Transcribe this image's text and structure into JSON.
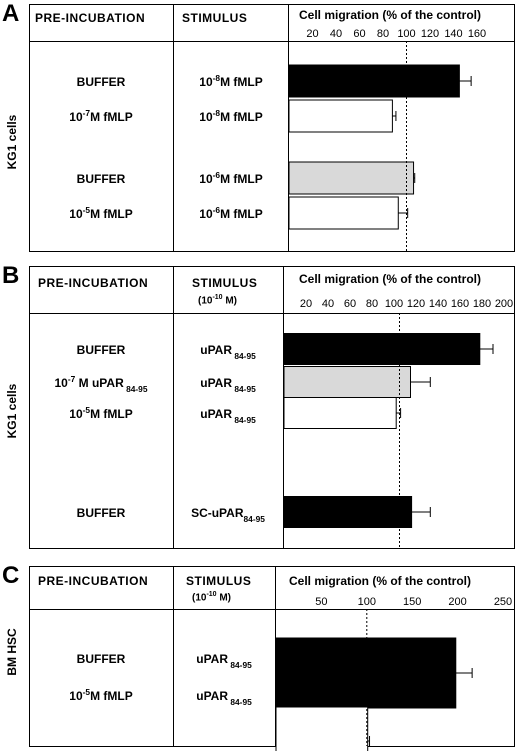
{
  "chart_data": [
    {
      "type": "bar",
      "panel": "A",
      "side_label": "KG1 cells",
      "header": {
        "col1": "PRE-INCUBATION",
        "col2": "STIMULUS",
        "col2_sub": "",
        "col3": "Cell migration (% of the control)"
      },
      "xticks": [
        "20",
        "40",
        "60",
        "80",
        "100",
        "120",
        "140",
        "160"
      ],
      "xlim": [
        0,
        160
      ],
      "reference_line": 100,
      "rows": [
        {
          "pre_main": "BUFFER",
          "pre_sup": "",
          "pre_tail": "",
          "pre_sub": "",
          "stim_main": "10",
          "stim_sup": "-8",
          "stim_tail": "M fMLP",
          "stim_sub": "",
          "value": 145,
          "error": 10,
          "fill": "#000000"
        },
        {
          "pre_main": "10",
          "pre_sup": "-7",
          "pre_tail": "M fMLP",
          "pre_sub": "",
          "stim_main": "10",
          "stim_sup": "-8",
          "stim_tail": "M fMLP",
          "stim_sub": "",
          "value": 88,
          "error": 3,
          "fill": "#ffffff"
        },
        {
          "pre_main": "BUFFER",
          "pre_sup": "",
          "pre_tail": "",
          "pre_sub": "",
          "stim_main": "10",
          "stim_sup": "-6",
          "stim_tail": "M fMLP",
          "stim_sub": "",
          "value": 106,
          "error": 1,
          "fill": "#d9d9d9"
        },
        {
          "pre_main": "10",
          "pre_sup": "-5",
          "pre_tail": "M fMLP",
          "pre_sub": "",
          "stim_main": "10",
          "stim_sup": "-6",
          "stim_tail": "M fMLP",
          "stim_sub": "",
          "value": 93,
          "error": 8,
          "fill": "#ffffff"
        }
      ]
    },
    {
      "type": "bar",
      "panel": "B",
      "side_label": "KG1 cells",
      "header": {
        "col1": "PRE-INCUBATION",
        "col2": "STIMULUS",
        "col2_sub": "(10",
        "col2_sub_sup": "-10",
        "col2_sub_tail": " M)",
        "col3": "Cell migration (% of the control)"
      },
      "xticks": [
        "20",
        "40",
        "60",
        "80",
        "100",
        "120",
        "140",
        "160",
        "180",
        "200"
      ],
      "xlim": [
        0,
        200
      ],
      "reference_line": 105,
      "rows": [
        {
          "pre_main": "BUFFER",
          "pre_sup": "",
          "pre_tail": "",
          "pre_sub": "",
          "stim_main": "uPAR",
          "stim_sup": "",
          "stim_tail": "",
          "stim_sub": " 84-95",
          "value": 178,
          "error": 12,
          "fill": "#000000"
        },
        {
          "pre_main": "10",
          "pre_sup": "-7",
          "pre_tail": " M uPAR",
          "pre_sub": " 84-95",
          "stim_main": "uPAR",
          "stim_sup": "",
          "stim_tail": "",
          "stim_sub": " 84-95",
          "value": 115,
          "error": 18,
          "fill": "#d9d9d9"
        },
        {
          "pre_main": "10",
          "pre_sup": "-5",
          "pre_tail": "M fMLP",
          "pre_sub": "",
          "stim_main": "uPAR",
          "stim_sup": "",
          "stim_tail": "",
          "stim_sub": " 84-95",
          "value": 102,
          "error": 4,
          "fill": "#ffffff"
        },
        {
          "pre_main": "BUFFER",
          "pre_sup": "",
          "pre_tail": "",
          "pre_sub": "",
          "stim_main": "SC-uPAR",
          "stim_sup": "",
          "stim_tail": "",
          "stim_sub": "84-95",
          "value": 116,
          "error": 17,
          "fill": "#000000"
        }
      ]
    },
    {
      "type": "bar",
      "panel": "C",
      "side_label": "BM HSC",
      "header": {
        "col1": "PRE-INCUBATION",
        "col2": "STIMULUS",
        "col2_sub": "(10",
        "col2_sub_sup": "-10",
        "col2_sub_tail": " M)",
        "col3": "Cell migration (% of the control)"
      },
      "xticks": [
        "50",
        "100",
        "150",
        "200",
        "250"
      ],
      "xlim": [
        0,
        250
      ],
      "reference_line": 100,
      "rows": [
        {
          "pre_main": "BUFFER",
          "pre_sup": "",
          "pre_tail": "",
          "pre_sub": "",
          "stim_main": "uPAR",
          "stim_sup": "",
          "stim_tail": "",
          "stim_sub": " 84-95",
          "value": 198,
          "error": 18,
          "fill": "#000000"
        },
        {
          "pre_main": "10",
          "pre_sup": "-5",
          "pre_tail": "M fMLP",
          "pre_sub": "",
          "stim_main": "uPAR",
          "stim_sup": "",
          "stim_tail": "",
          "stim_sub": " 84-95",
          "value": 101,
          "error": 2,
          "fill": "#ffffff"
        }
      ]
    }
  ]
}
